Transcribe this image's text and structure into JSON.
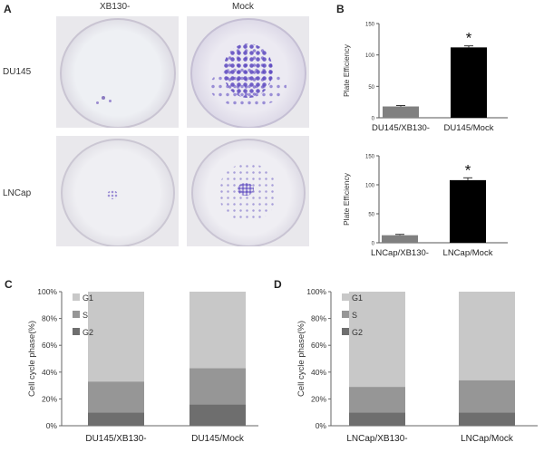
{
  "panels": {
    "a": "A",
    "b": "B",
    "c": "C",
    "d": "D"
  },
  "photos": {
    "col_labels": [
      "XB130-",
      "Mock"
    ],
    "row_labels": [
      "DU145",
      "LNCap"
    ]
  },
  "chart_data": [
    {
      "id": "B-top",
      "type": "bar",
      "ylabel": "Plate Efficiency",
      "categories": [
        "DU145/XB130-",
        "DU145/Mock"
      ],
      "values": [
        18,
        112
      ],
      "errors": [
        1.5,
        2.5
      ],
      "colors": [
        "#808080",
        "#000000"
      ],
      "ylim": [
        0,
        150
      ],
      "yticks": [
        "0",
        "50",
        "100",
        "150"
      ],
      "annotations": [
        "",
        "*"
      ]
    },
    {
      "id": "B-bottom",
      "type": "bar",
      "ylabel": "Plate Efficiency",
      "categories": [
        "LNCap/XB130-",
        "LNCap/Mock"
      ],
      "values": [
        13,
        108
      ],
      "errors": [
        1.5,
        4
      ],
      "colors": [
        "#808080",
        "#000000"
      ],
      "ylim": [
        0,
        150
      ],
      "yticks": [
        "0",
        "50",
        "100",
        "150"
      ],
      "annotations": [
        "",
        "*"
      ]
    },
    {
      "id": "C",
      "type": "bar",
      "stacked": true,
      "ylabel": "Cell cycle phase(%)",
      "categories": [
        "DU145/XB130-",
        "DU145/Mock"
      ],
      "series": [
        {
          "name": "G2",
          "values": [
            10,
            16
          ],
          "color": "#6e6e6e"
        },
        {
          "name": "S",
          "values": [
            23,
            27
          ],
          "color": "#969696"
        },
        {
          "name": "G1",
          "values": [
            67,
            57
          ],
          "color": "#c8c8c8"
        }
      ],
      "ylim": [
        0,
        100
      ],
      "yticks": [
        "0%",
        "20%",
        "40%",
        "60%",
        "80%",
        "100%"
      ]
    },
    {
      "id": "D",
      "type": "bar",
      "stacked": true,
      "ylabel": "Cell cycle phase(%)",
      "categories": [
        "LNCap/XB130-",
        "LNCap/Mock"
      ],
      "series": [
        {
          "name": "G2",
          "values": [
            10,
            10
          ],
          "color": "#6e6e6e"
        },
        {
          "name": "S",
          "values": [
            19,
            24
          ],
          "color": "#969696"
        },
        {
          "name": "G1",
          "values": [
            71,
            66
          ],
          "color": "#c8c8c8"
        }
      ],
      "ylim": [
        0,
        100
      ],
      "yticks": [
        "0%",
        "20%",
        "40%",
        "60%",
        "80%",
        "100%"
      ]
    }
  ]
}
